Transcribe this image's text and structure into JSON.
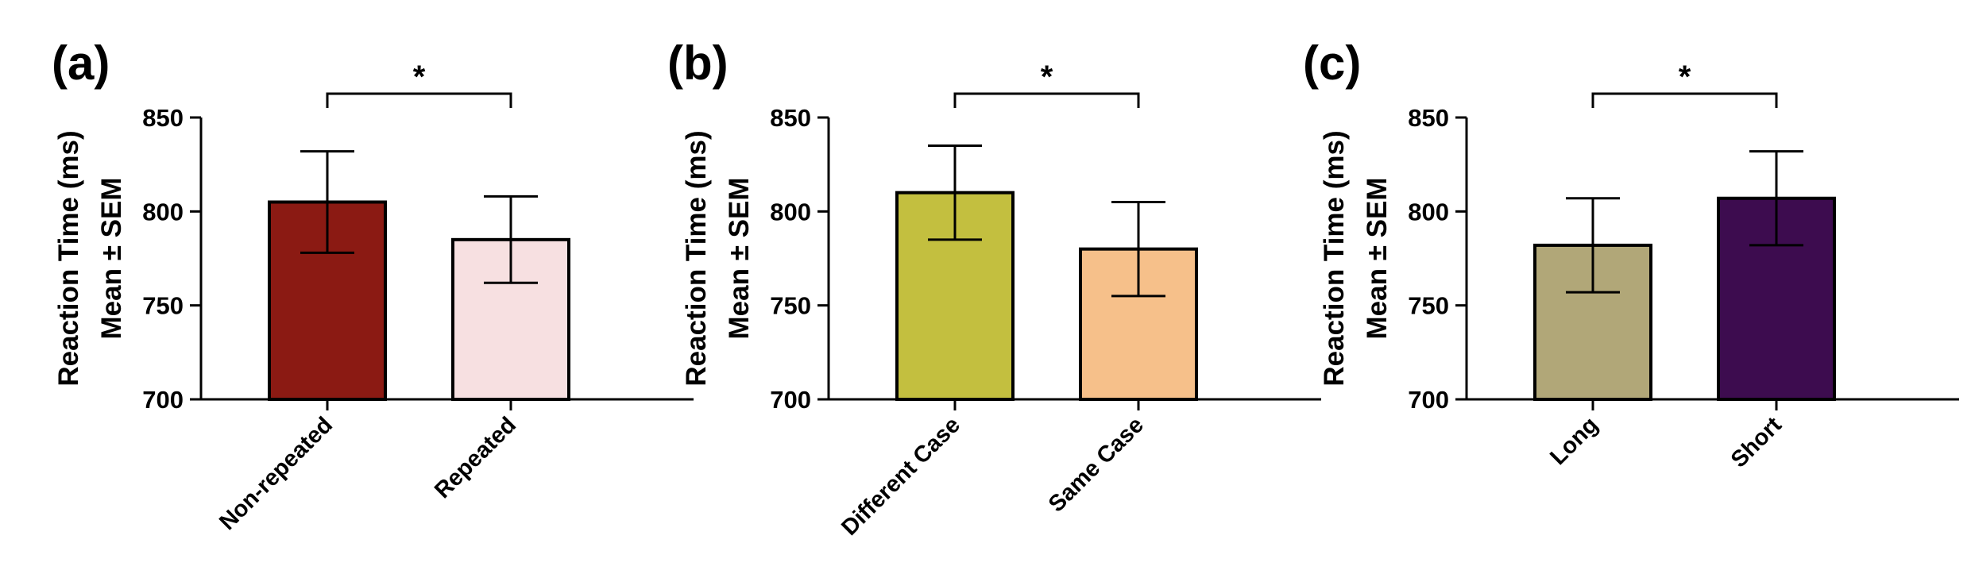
{
  "chart_data": [
    {
      "type": "bar",
      "panel_label": "(a)",
      "ylabel_lines": [
        "Reaction Time (ms)",
        "Mean ± SEM"
      ],
      "ylim": [
        700,
        850
      ],
      "yticks": [
        700,
        750,
        800,
        850
      ],
      "ytick_labels": [
        "700",
        "750",
        "800",
        "850"
      ],
      "categories": [
        "Non-repeated",
        "Repeated"
      ],
      "values": [
        805,
        785
      ],
      "errors": [
        27,
        23
      ],
      "colors": [
        "#8b1a13",
        "#f7e0e1"
      ],
      "significance": "*"
    },
    {
      "type": "bar",
      "panel_label": "(b)",
      "ylabel_lines": [
        "Reaction Time (ms)",
        "Mean ± SEM"
      ],
      "ylim": [
        700,
        850
      ],
      "yticks": [
        700,
        750,
        800,
        850
      ],
      "ytick_labels": [
        "700",
        "750",
        "800",
        "850"
      ],
      "categories": [
        "Different Case",
        "Same Case"
      ],
      "values": [
        810,
        780
      ],
      "errors": [
        25,
        25
      ],
      "colors": [
        "#c3bf3f",
        "#f6c08a"
      ],
      "significance": "*"
    },
    {
      "type": "bar",
      "panel_label": "(c)",
      "ylabel_lines": [
        "Reaction Time (ms)",
        "Mean ± SEM"
      ],
      "ylim": [
        700,
        850
      ],
      "yticks": [
        700,
        750,
        800,
        850
      ],
      "ytick_labels": [
        "700",
        "750",
        "800",
        "850"
      ],
      "categories": [
        "Long",
        "Short"
      ],
      "values": [
        782,
        807
      ],
      "errors": [
        25,
        25
      ],
      "colors": [
        "#b1a778",
        "#3d0c4f"
      ],
      "significance": "*"
    }
  ]
}
